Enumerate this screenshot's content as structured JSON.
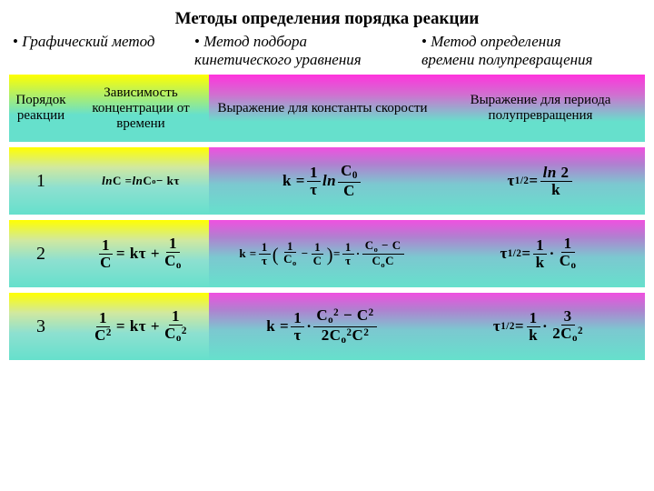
{
  "title": "Методы определения порядка реакции",
  "methods": {
    "m1": "Графический метод",
    "m2a": "Метод подбора",
    "m2b": "кинетического уравнения",
    "m3a": "Метод определения",
    "m3b": "времени полупревращения"
  },
  "headers": {
    "col1": "Порядок реакции",
    "col2": "Зависимость концентрации от времени",
    "col3": "Выражение для константы скорости",
    "col4": "Выражение для периода полупревращения"
  },
  "rows": {
    "r1": {
      "order": "1"
    },
    "r2": {
      "order": "2"
    },
    "r3": {
      "order": "3"
    }
  },
  "symbols": {
    "bullet": "•",
    "tau": "τ",
    "ln": "ln",
    "half": "1/2",
    "C": "C",
    "Co": "o",
    "k": "k",
    "eq": "=",
    "minus": "−",
    "plus": "+",
    "dot": "·",
    "two": "2",
    "three": "3",
    "one": "1",
    "ln2": "ln 2"
  },
  "colors": {
    "yellow_teal_top": "#ffff00",
    "teal": "#66e0cc",
    "magenta": "#ff33dd"
  }
}
